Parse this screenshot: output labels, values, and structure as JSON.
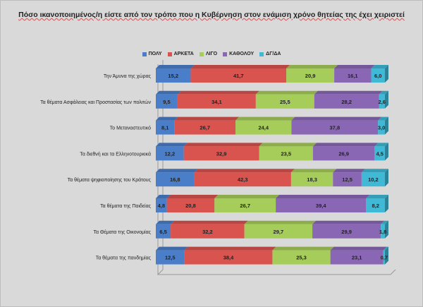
{
  "chart_data": {
    "type": "bar",
    "orientation": "horizontal-stacked-100",
    "title": "Πόσο ικανοποιημένος/η είστε από τον τρόπο που η Κυβέρνηση στον ενάμιση χρόνο θητείας της έχει χειριστεί",
    "legend_position": "top",
    "categories": [
      "Την Άμυνα της χώρας",
      "Τα θέματα Ασφάλειας και Προστασίας των πολιτών",
      "Το Μεταναστευτικό",
      "Τα διεθνή και τα Ελληνοτουρκικά",
      "Τα θέματα ψηφιοποίησης του Κράτους",
      "Τα θέματα της Παιδείας",
      "Τα Θέματα της Οικονομίας",
      "Τα θέματα της πανδημίας"
    ],
    "series": [
      {
        "name": "ΠΟΛΥ",
        "color": "#4a7ec9",
        "values": [
          15.2,
          9.5,
          8.1,
          12.2,
          16.8,
          4.8,
          6.5,
          12.5
        ],
        "labels": [
          "15,2",
          "9,5",
          "8,1",
          "12,2",
          "16,8",
          "4,8",
          "6,5",
          "12,5"
        ]
      },
      {
        "name": "ΑΡΚΕΤΑ",
        "color": "#d9534f",
        "values": [
          41.7,
          34.1,
          26.7,
          32.9,
          42.3,
          20.8,
          32.2,
          38.4
        ],
        "labels": [
          "41,7",
          "34,1",
          "26,7",
          "32,9",
          "42,3",
          "20,8",
          "32,2",
          "38,4"
        ]
      },
      {
        "name": "ΛΙΓΟ",
        "color": "#a6cc5a",
        "values": [
          20.9,
          25.5,
          24.4,
          23.5,
          18.3,
          26.7,
          29.7,
          25.3
        ],
        "labels": [
          "20,9",
          "25,5",
          "24,4",
          "23,5",
          "18,3",
          "26,7",
          "29,7",
          "25,3"
        ]
      },
      {
        "name": "ΚΑΘΟΛΟΥ",
        "color": "#8a67b5",
        "values": [
          16.1,
          28.2,
          37.8,
          26.9,
          12.5,
          39.4,
          29.9,
          23.1
        ],
        "labels": [
          "16,1",
          "28,2",
          "37,8",
          "26,9",
          "12,5",
          "39,4",
          "29,9",
          "23,1"
        ]
      },
      {
        "name": "ΔΓ/ΔΑ",
        "color": "#3fb9d6",
        "values": [
          6.0,
          2.6,
          3.0,
          4.5,
          10.2,
          8.2,
          1.8,
          0.7
        ],
        "labels": [
          "6,0",
          "2,6",
          "3,0",
          "4,5",
          "10,2",
          "8,2",
          "1,8",
          "0,7"
        ]
      }
    ]
  }
}
